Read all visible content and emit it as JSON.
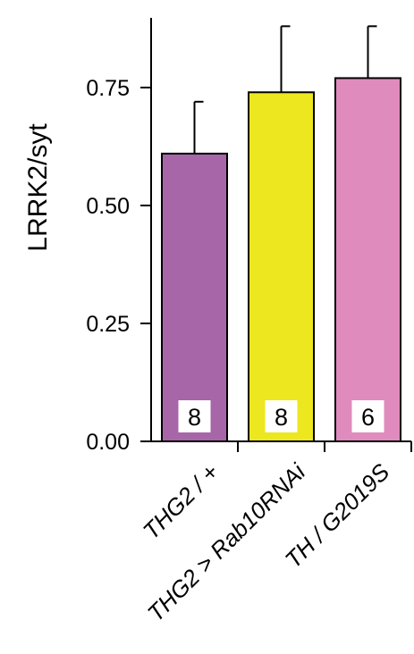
{
  "chart_data": {
    "type": "bar",
    "title": "",
    "xlabel": "",
    "ylabel": "LRRK2/syt",
    "ylim": [
      0,
      0.9
    ],
    "yticks": [
      "0.00",
      "0.25",
      "0.50",
      "0.75"
    ],
    "grid": false,
    "legend": "none",
    "categories": [
      "THG2 / +",
      "THG2 > Rab10RNAi",
      "TH / G2019S"
    ],
    "values": [
      0.61,
      0.74,
      0.77
    ],
    "errors": [
      0.11,
      0.14,
      0.11
    ],
    "n_labels": [
      "8",
      "8",
      "6"
    ],
    "colors": [
      "#a666a8",
      "#ece71e",
      "#e08bbd"
    ]
  }
}
